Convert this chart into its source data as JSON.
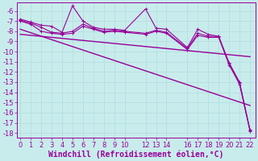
{
  "xlabel": "Windchill (Refroidissement éolien,°C)",
  "background_color": "#c8ecec",
  "line_color": "#990099",
  "grid_color": "#b8e0e0",
  "ylim": [
    -18.5,
    -5.2
  ],
  "xlim": [
    -0.3,
    22.5
  ],
  "yticks": [
    -18,
    -17,
    -16,
    -15,
    -14,
    -13,
    -12,
    -11,
    -10,
    -9,
    -8,
    -7,
    -6
  ],
  "xtick_positions": [
    0,
    1,
    2,
    3,
    4,
    5,
    6,
    7,
    8,
    9,
    10,
    12,
    13,
    14,
    16,
    17,
    18,
    19,
    20,
    21,
    22
  ],
  "xtick_labels": [
    "0",
    "1",
    "2",
    "3",
    "4",
    "5",
    "6",
    "7",
    "8",
    "9",
    "10",
    "12",
    "13",
    "14",
    "16",
    "17",
    "18",
    "19",
    "20",
    "21",
    "22"
  ],
  "series1_x": [
    0,
    1,
    2,
    3,
    4,
    5,
    6,
    7,
    8,
    9,
    10,
    12,
    13,
    14,
    16,
    17,
    18,
    19,
    20,
    21,
    22
  ],
  "series1_y": [
    -6.8,
    -7.1,
    -7.4,
    -7.5,
    -8.1,
    -5.5,
    -7.0,
    -7.6,
    -7.8,
    -7.8,
    -7.9,
    -5.8,
    -7.7,
    -7.8,
    -9.6,
    -7.8,
    -8.3,
    -8.5,
    -11.1,
    -13.0,
    -17.7
  ],
  "series2_x": [
    0,
    1,
    2,
    3,
    4,
    5,
    6,
    7,
    8,
    9,
    10,
    12,
    13,
    14,
    16,
    17,
    18,
    19,
    20,
    21,
    22
  ],
  "series2_y": [
    -7.0,
    -7.3,
    -8.0,
    -8.2,
    -8.3,
    -8.2,
    -7.5,
    -7.8,
    -8.1,
    -8.0,
    -8.1,
    -8.3,
    -8.0,
    -8.2,
    -9.8,
    -8.4,
    -8.6,
    -8.6,
    -11.3,
    -13.2,
    -17.8
  ],
  "series3_x": [
    0,
    1,
    2,
    3,
    4,
    5,
    6,
    7,
    8,
    9,
    10,
    12,
    13,
    14,
    16,
    17,
    18,
    19,
    20,
    21,
    22
  ],
  "series3_y": [
    -6.9,
    -7.2,
    -7.6,
    -8.1,
    -8.2,
    -8.0,
    -7.3,
    -7.7,
    -8.0,
    -7.9,
    -8.0,
    -8.2,
    -7.9,
    -8.1,
    -9.7,
    -8.2,
    -8.5,
    -8.5,
    -11.2,
    -13.1,
    -17.75
  ],
  "trend1_x": [
    0,
    22
  ],
  "trend1_y": [
    -7.8,
    -15.3
  ],
  "trend2_x": [
    0,
    22
  ],
  "trend2_y": [
    -8.3,
    -10.5
  ],
  "fontsize_xlabel": 7.0,
  "fontsize_ticks": 6.0
}
